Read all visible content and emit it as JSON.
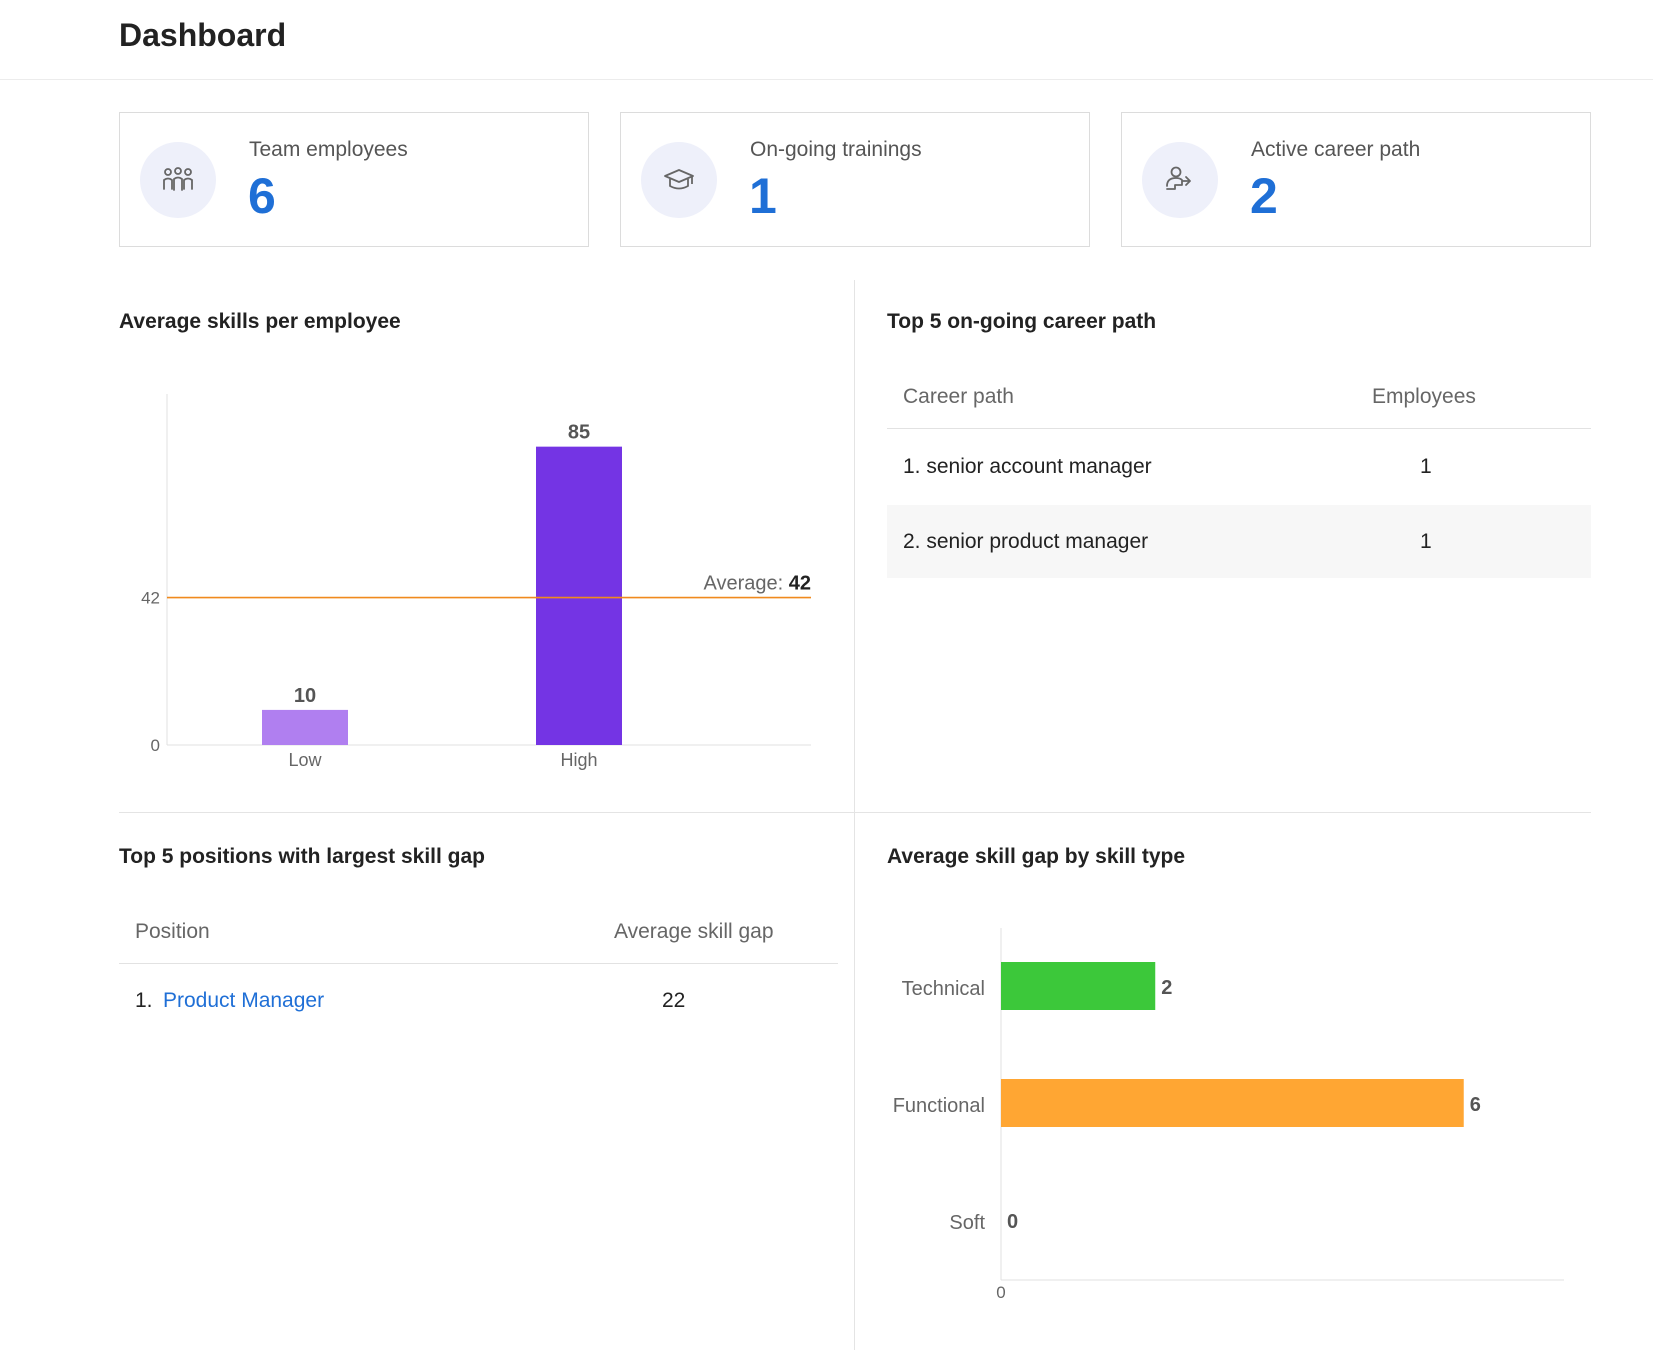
{
  "header": {
    "title": "Dashboard"
  },
  "cards": [
    {
      "label": "Team employees",
      "value": "6",
      "icon": "team-icon"
    },
    {
      "label": "On-going trainings",
      "value": "1",
      "icon": "graduation-cap-icon"
    },
    {
      "label": "Active career path",
      "value": "2",
      "icon": "career-path-icon"
    }
  ],
  "colors": {
    "accent": "#1f6fd6",
    "bar_low": "#b07ff0",
    "bar_high": "#7434e4",
    "average_line": "#f08a1e",
    "technical": "#3cc83a",
    "functional": "#ffa633"
  },
  "skills_chart": {
    "title": "Average skills per employee",
    "chart_data": {
      "type": "bar",
      "categories": [
        "Low",
        "High"
      ],
      "values": [
        10,
        85
      ],
      "yticks": [
        "0",
        "42"
      ],
      "average": {
        "label": "Average:",
        "value": "42"
      },
      "ylim": [
        0,
        100
      ]
    }
  },
  "career_paths": {
    "title": "Top 5 on-going career path",
    "columns": [
      "Career path",
      "Employees"
    ],
    "rows": [
      {
        "name": "1. senior account manager",
        "count": "1"
      },
      {
        "name": "2. senior product manager",
        "count": "1"
      }
    ]
  },
  "positions": {
    "title": "Top 5 positions with largest skill gap",
    "columns": [
      "Position",
      "Average skill gap"
    ],
    "rows": [
      {
        "index": "1.",
        "name": "Product Manager",
        "gap": "22"
      }
    ]
  },
  "skill_gap_chart": {
    "title": "Average skill gap by skill type",
    "chart_data": {
      "type": "bar",
      "orientation": "horizontal",
      "categories": [
        "Technical",
        "Functional",
        "Soft"
      ],
      "values": [
        2,
        6,
        0
      ],
      "xtick": "0",
      "xlim": [
        0,
        7.3
      ]
    }
  }
}
